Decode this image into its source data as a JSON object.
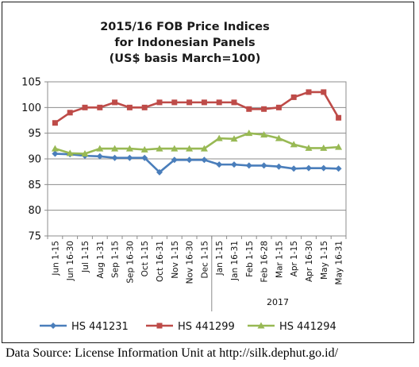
{
  "chart_data": {
    "type": "line",
    "title_lines": [
      "2015/16 FOB Price Indices",
      "for Indonesian Panels",
      "(US$ basis March=100)"
    ],
    "categories": [
      "Jun 1-15",
      "Jun 16-30",
      "Jul 1-15",
      "Aug 1-31",
      "Sep 1-15",
      "Sep 16-30",
      "Oct 1-15",
      "Oct 16-31",
      "Nov 1-15",
      "Nov 16-30",
      "Dec 1-15",
      "Jan 1-15",
      "Jan 16-31",
      "Feb 1-15",
      "Feb 16-28",
      "Mar 1-15",
      "Apr 1-15",
      "Apr 16-30",
      "May 1-15",
      "May 16-31"
    ],
    "year_label": "2017",
    "ylim": [
      75,
      105
    ],
    "yticks": [
      75,
      80,
      85,
      90,
      95,
      100,
      105
    ],
    "grid": true,
    "legend_position": "bottom",
    "series": [
      {
        "name": "HS 441231",
        "color": "#4a7ebb",
        "values": [
          91.0,
          90.9,
          90.6,
          90.5,
          90.2,
          90.2,
          90.2,
          87.4,
          89.8,
          89.8,
          89.8,
          88.9,
          88.9,
          88.7,
          88.7,
          88.5,
          88.1,
          88.2,
          88.2,
          88.1
        ]
      },
      {
        "name": "HS 441299",
        "color": "#be4b48",
        "values": [
          97.0,
          99.0,
          100.0,
          100.0,
          101.0,
          100.0,
          100.0,
          101.0,
          101.0,
          101.0,
          101.0,
          101.0,
          101.0,
          99.7,
          99.7,
          100.0,
          102.0,
          103.0,
          103.0,
          98.0
        ]
      },
      {
        "name": "HS 441294",
        "color": "#98b954",
        "values": [
          92.0,
          91.1,
          91.0,
          92.0,
          92.0,
          92.0,
          91.8,
          92.0,
          92.0,
          92.0,
          92.0,
          94.0,
          93.9,
          95.0,
          94.7,
          94.0,
          92.8,
          92.1,
          92.1,
          92.3
        ]
      }
    ]
  },
  "footer": {
    "source": "Data Source: License Information Unit at http://silk.dephut.go.id/"
  }
}
